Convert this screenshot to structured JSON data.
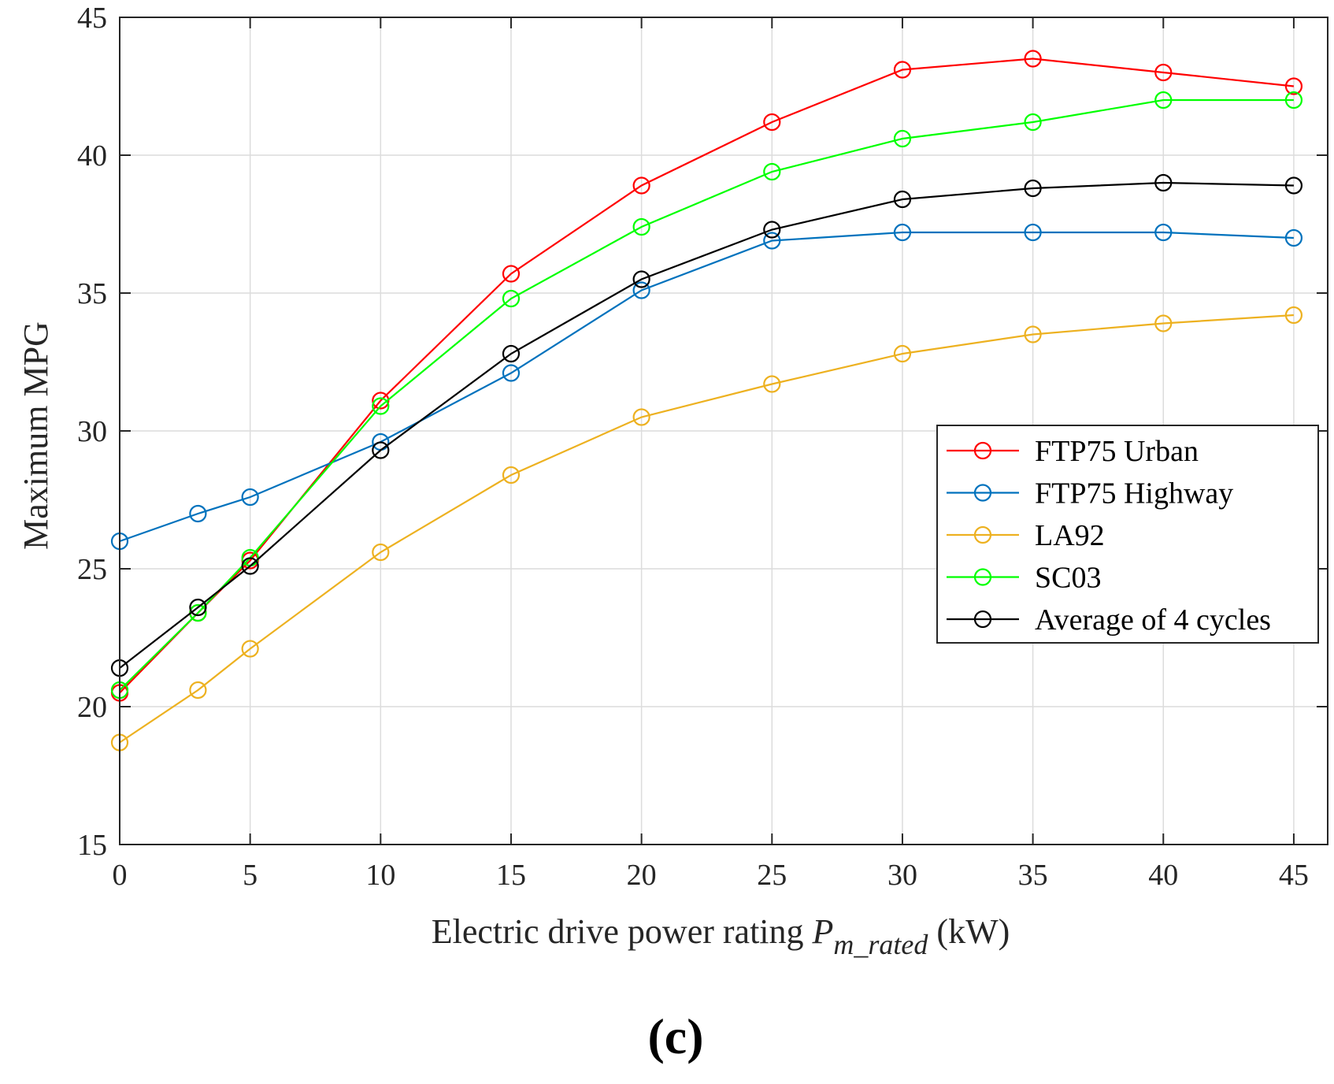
{
  "chart_data": {
    "type": "line",
    "x": [
      0,
      3,
      5,
      10,
      15,
      20,
      25,
      30,
      35,
      40,
      45
    ],
    "series": [
      {
        "name": "FTP75 Urban",
        "color": "#ff0000",
        "values": [
          20.5,
          23.4,
          25.3,
          31.1,
          35.7,
          38.9,
          41.2,
          43.1,
          43.5,
          43.0,
          42.5
        ]
      },
      {
        "name": "FTP75 Highway",
        "color": "#0072bd",
        "values": [
          26.0,
          27.0,
          27.6,
          29.6,
          32.1,
          35.1,
          36.9,
          37.2,
          37.2,
          37.2,
          37.0
        ]
      },
      {
        "name": "LA92",
        "color": "#edb120",
        "values": [
          18.7,
          20.6,
          22.1,
          25.6,
          28.4,
          30.5,
          31.7,
          32.8,
          33.5,
          33.9,
          34.2
        ]
      },
      {
        "name": "SC03",
        "color": "#00ff00",
        "values": [
          20.6,
          23.4,
          25.4,
          30.9,
          34.8,
          37.4,
          39.4,
          40.6,
          41.2,
          42.0,
          42.0
        ]
      },
      {
        "name": "Average of 4 cycles",
        "color": "#000000",
        "values": [
          21.4,
          23.6,
          25.1,
          29.3,
          32.8,
          35.5,
          37.3,
          38.4,
          38.8,
          39.0,
          38.9
        ]
      }
    ],
    "xticks": [
      "0",
      "5",
      "10",
      "15",
      "20",
      "25",
      "30",
      "35",
      "40",
      "45"
    ],
    "yticks": [
      "15",
      "20",
      "25",
      "30",
      "35",
      "40",
      "45"
    ],
    "xlim": [
      0,
      46.3
    ],
    "ylim": [
      15,
      45
    ],
    "ylabel": "Maximum MPG",
    "xlabel_prefix": "Electric drive power rating ",
    "xlabel_var": "P",
    "xlabel_sub": "m_rated",
    "xlabel_suffix": " (kW)",
    "grid": true,
    "legend_position": "right",
    "panel_label": "(c)"
  }
}
